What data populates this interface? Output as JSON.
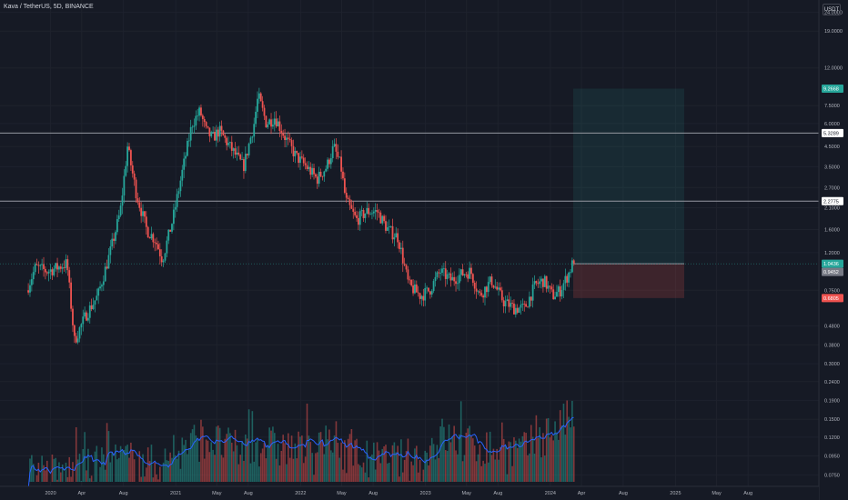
{
  "header": {
    "symbol_title": "Kava / TetherUS, 5D, BINANCE",
    "currency_button": "USDT"
  },
  "colors": {
    "background": "#161a25",
    "up": "#26a69a",
    "down": "#ef5350",
    "ma": "#2962ff",
    "level_line": "#9598a1",
    "text": "#b2b5be"
  },
  "chart_data": {
    "type": "candlestick",
    "y_scale": "log",
    "ylim": [
      0.065,
      28
    ],
    "y_ticks": [
      "24.0000",
      "19.0000",
      "12.0000",
      "7.5000",
      "6.0000",
      "4.5000",
      "3.5000",
      "2.7000",
      "2.1000",
      "1.6000",
      "1.2000",
      "0.7500",
      "0.4800",
      "0.3800",
      "0.3000",
      "0.2400",
      "0.1900",
      "0.1500",
      "0.1200",
      "0.0950",
      "0.0750"
    ],
    "x_ticks": [
      "2020",
      "Apr",
      "Aug",
      "2021",
      "May",
      "Aug",
      "2022",
      "May",
      "Aug",
      "2023",
      "May",
      "Aug",
      "2024",
      "Apr",
      "Aug",
      "2025",
      "May",
      "Aug"
    ],
    "horizontal_levels": [
      {
        "value": 5.3289,
        "label": "5.3289"
      },
      {
        "value": 2.2775,
        "label": "2.2775"
      }
    ],
    "price_tags": [
      {
        "value": 9.2668,
        "label": "9.2668",
        "color": "#26a69a"
      },
      {
        "value": 1.0436,
        "label": "1.0436",
        "color": "#26a69a"
      },
      {
        "value": 0.9452,
        "label": "0.9452",
        "color": "#787b86"
      },
      {
        "value": 0.6805,
        "label": "0.6805",
        "color": "#ef5350"
      }
    ],
    "position_tool": {
      "entry": 1.0436,
      "target": 9.2668,
      "stop": 0.6805
    },
    "price_path": [
      [
        "2019-10-25",
        0.75
      ],
      [
        "2019-11-20",
        1.0
      ],
      [
        "2019-12-25",
        0.95
      ],
      [
        "2020-01-25",
        1.0
      ],
      [
        "2020-02-20",
        1.05
      ],
      [
        "2020-03-13",
        0.4
      ],
      [
        "2020-04-15",
        0.55
      ],
      [
        "2020-05-20",
        0.7
      ],
      [
        "2020-06-25",
        1.2
      ],
      [
        "2020-07-25",
        2.0
      ],
      [
        "2020-08-15",
        4.5
      ],
      [
        "2020-09-10",
        2.5
      ],
      [
        "2020-10-10",
        1.6
      ],
      [
        "2020-11-05",
        1.4
      ],
      [
        "2020-11-25",
        1.1
      ],
      [
        "2020-12-25",
        1.8
      ],
      [
        "2021-01-25",
        3.5
      ],
      [
        "2021-02-20",
        6.0
      ],
      [
        "2021-03-15",
        7.0
      ],
      [
        "2021-04-01",
        5.5
      ],
      [
        "2021-04-20",
        5.0
      ],
      [
        "2021-05-10",
        5.5
      ],
      [
        "2021-06-10",
        4.5
      ],
      [
        "2021-07-20",
        3.5
      ],
      [
        "2021-08-20",
        6.0
      ],
      [
        "2021-09-01",
        8.5
      ],
      [
        "2021-09-25",
        6.0
      ],
      [
        "2021-10-20",
        6.5
      ],
      [
        "2021-11-20",
        5.0
      ],
      [
        "2021-12-20",
        4.0
      ],
      [
        "2022-01-20",
        3.5
      ],
      [
        "2022-02-20",
        3.0
      ],
      [
        "2022-03-20",
        3.5
      ],
      [
        "2022-04-10",
        4.5
      ],
      [
        "2022-05-01",
        3.5
      ],
      [
        "2022-05-15",
        2.3
      ],
      [
        "2022-06-15",
        1.8
      ],
      [
        "2022-07-15",
        2.0
      ],
      [
        "2022-08-15",
        2.0
      ],
      [
        "2022-09-15",
        1.6
      ],
      [
        "2022-10-15",
        1.45
      ],
      [
        "2022-11-15",
        0.8
      ],
      [
        "2022-12-20",
        0.7
      ],
      [
        "2023-01-15",
        0.75
      ],
      [
        "2023-02-15",
        0.95
      ],
      [
        "2023-03-20",
        0.85
      ],
      [
        "2023-04-20",
        0.92
      ],
      [
        "2023-05-15",
        0.95
      ],
      [
        "2023-06-10",
        0.7
      ],
      [
        "2023-07-15",
        0.85
      ],
      [
        "2023-08-20",
        0.65
      ],
      [
        "2023-09-20",
        0.6
      ],
      [
        "2023-10-20",
        0.6
      ],
      [
        "2023-11-20",
        0.8
      ],
      [
        "2023-12-15",
        0.85
      ],
      [
        "2024-01-10",
        0.7
      ],
      [
        "2024-02-01",
        0.75
      ],
      [
        "2024-02-25",
        0.92
      ],
      [
        "2024-03-08",
        1.0436
      ]
    ],
    "volume_path": [
      [
        "2019-10-25",
        0.08
      ],
      [
        "2019-12-01",
        0.078
      ],
      [
        "2020-02-01",
        0.075
      ],
      [
        "2020-04-01",
        0.08
      ],
      [
        "2020-06-01",
        0.085
      ],
      [
        "2020-08-01",
        0.09
      ],
      [
        "2020-10-01",
        0.085
      ],
      [
        "2020-12-01",
        0.085
      ],
      [
        "2021-02-01",
        0.105
      ],
      [
        "2021-03-15",
        0.12
      ],
      [
        "2021-05-01",
        0.11
      ],
      [
        "2021-07-01",
        0.1
      ],
      [
        "2021-09-01",
        0.11
      ],
      [
        "2021-11-01",
        0.105
      ],
      [
        "2022-01-01",
        0.1
      ],
      [
        "2022-03-01",
        0.1
      ],
      [
        "2022-05-01",
        0.105
      ],
      [
        "2022-07-01",
        0.09
      ],
      [
        "2022-09-01",
        0.088
      ],
      [
        "2022-11-15",
        0.092
      ],
      [
        "2023-01-01",
        0.09
      ],
      [
        "2023-02-15",
        0.12
      ],
      [
        "2023-04-15",
        0.11
      ],
      [
        "2023-06-15",
        0.105
      ],
      [
        "2023-08-15",
        0.1
      ],
      [
        "2023-10-15",
        0.1
      ],
      [
        "2023-12-01",
        0.12
      ],
      [
        "2024-02-01",
        0.14
      ],
      [
        "2024-03-08",
        0.16
      ]
    ]
  }
}
